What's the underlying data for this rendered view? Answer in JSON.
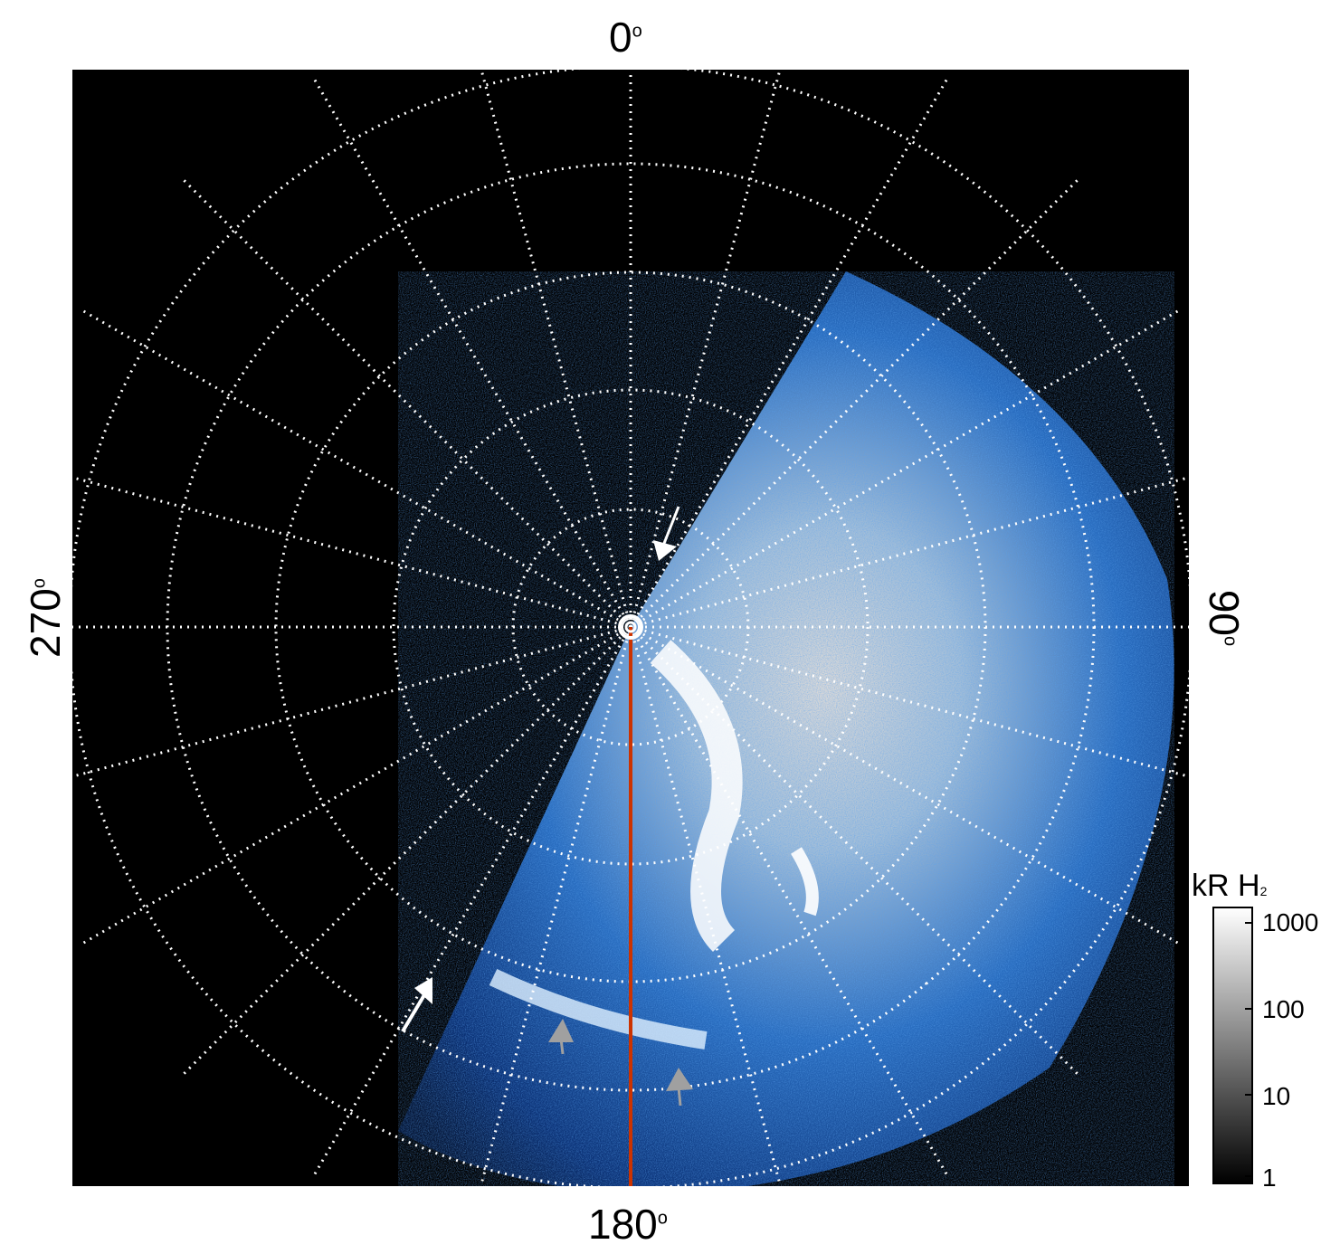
{
  "labels": {
    "top": "0",
    "bottom": "180",
    "left": "270",
    "right": "90",
    "degree_symbol": "o"
  },
  "colorbar": {
    "title": "kR H",
    "title_sub": "2",
    "ticks": [
      "1000",
      "100",
      "10",
      "1"
    ]
  },
  "colors": {
    "background": "#000000",
    "grid": "#ffffff",
    "meridian_line": "#cc3300",
    "aurora_low": "#0a2a66",
    "aurora_mid": "#2f7fe0",
    "aurora_high": "#ffffff",
    "arrow_white": "#ffffff",
    "arrow_grey": "#a0a0a0"
  }
}
